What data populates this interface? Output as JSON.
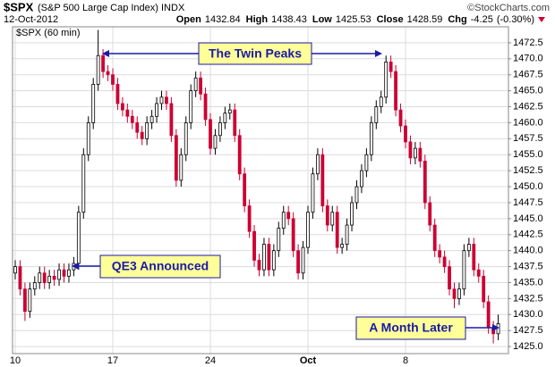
{
  "chart_data": {
    "type": "candlestick",
    "title": "$SPX",
    "subtitle": "(S&P 500 Large Cap Index) INDX",
    "source": "©StockCharts.com",
    "date": "12-Oct-2012",
    "quote": [
      {
        "label": "Open",
        "value": 1432.84
      },
      {
        "label": "High",
        "value": 1438.43
      },
      {
        "label": "Low",
        "value": 1425.53
      },
      {
        "label": "Close",
        "value": 1428.59
      },
      {
        "label": "Chg",
        "value": -4.25
      }
    ],
    "change_pct": "(-0.30%)",
    "chart_label": "$SPX (60 min)",
    "annotations": [
      "The Twin Peaks",
      "QE3 Announced",
      "A Month Later"
    ],
    "up_color": "#000000",
    "down_color": "#cc0033",
    "grid": true,
    "ylim": [
      1423.9,
      1475.0
    ],
    "yticks": [
      {
        "value": 1425,
        "label": "1425.0"
      },
      {
        "value": 1427.5,
        "label": "1427.5"
      },
      {
        "value": 1430,
        "label": "1430.0"
      },
      {
        "value": 1432.5,
        "label": "1432.5"
      },
      {
        "value": 1435,
        "label": "1435.0"
      },
      {
        "value": 1437.5,
        "label": "1437.5"
      },
      {
        "value": 1440,
        "label": "1440.0"
      },
      {
        "value": 1442.5,
        "label": "1442.5"
      },
      {
        "value": 1445,
        "label": "1445.0"
      },
      {
        "value": 1447.5,
        "label": "1447.5"
      },
      {
        "value": 1450,
        "label": "1450.0"
      },
      {
        "value": 1452.5,
        "label": "1452.5"
      },
      {
        "value": 1455,
        "label": "1455.0"
      },
      {
        "value": 1457.5,
        "label": "1457.5"
      },
      {
        "value": 1460,
        "label": "1460.0"
      },
      {
        "value": 1462.5,
        "label": "1462.5"
      },
      {
        "value": 1465,
        "label": "1465.0"
      },
      {
        "value": 1467.5,
        "label": "1467.5"
      },
      {
        "value": 1470,
        "label": "1470.0"
      },
      {
        "value": 1472.5,
        "label": "1472.5"
      }
    ],
    "categories": [
      "10",
      null,
      null,
      null,
      null,
      null,
      null,
      null,
      null,
      null,
      null,
      null,
      null,
      null,
      null,
      null,
      null,
      null,
      null,
      null,
      "17",
      null,
      null,
      null,
      null,
      null,
      null,
      null,
      null,
      null,
      null,
      null,
      null,
      null,
      null,
      null,
      null,
      null,
      null,
      null,
      "24",
      null,
      null,
      null,
      null,
      null,
      null,
      null,
      null,
      null,
      null,
      null,
      null,
      null,
      null,
      null,
      null,
      null,
      null,
      null,
      "Oct",
      null,
      null,
      null,
      null,
      null,
      null,
      null,
      null,
      null,
      null,
      null,
      null,
      null,
      null,
      null,
      null,
      null,
      null,
      null,
      "8",
      null,
      null,
      null,
      null,
      null,
      null,
      null,
      null,
      null,
      null,
      null,
      null,
      null,
      null,
      null,
      null,
      null,
      null,
      null
    ],
    "open": [
      1436.5,
      1437.5,
      1434.0,
      1430.5,
      1434.0,
      1435.0,
      1436.5,
      1435.0,
      1436.0,
      1435.5,
      1437.0,
      1436.0,
      1437.0,
      1438.0,
      1446.0,
      1455.0,
      1460.0,
      1466.0,
      1470.5,
      1468.0,
      1467.5,
      1466.0,
      1463.0,
      1462.0,
      1461.0,
      1460.0,
      1458.5,
      1457.5,
      1460.0,
      1461.0,
      1463.0,
      1464.0,
      1463.0,
      1458.0,
      1451.0,
      1455.0,
      1460.0,
      1465.0,
      1467.0,
      1464.5,
      1460.5,
      1456.0,
      1458.0,
      1460.0,
      1461.5,
      1462.0,
      1458.0,
      1452.0,
      1447.0,
      1443.0,
      1438.5,
      1437.0,
      1441.0,
      1437.0,
      1440.0,
      1443.5,
      1446.0,
      1445.0,
      1440.0,
      1436.5,
      1440.5,
      1446.0,
      1452.0,
      1455.0,
      1447.0,
      1444.0,
      1446.0,
      1440.5,
      1441.0,
      1444.0,
      1447.5,
      1450.0,
      1452.5,
      1455.0,
      1460.0,
      1462.5,
      1464.0,
      1469.5,
      1468.0,
      1462.0,
      1459.5,
      1457.0,
      1454.5,
      1456.0,
      1454.0,
      1447.5,
      1444.0,
      1440.0,
      1439.0,
      1437.5,
      1434.0,
      1432.5,
      1434.0,
      1440.0,
      1441.0,
      1437.0,
      1436.0,
      1432.0,
      1428.0,
      1427.0
    ],
    "high": [
      1438.5,
      1438.5,
      1435,
      1435,
      1436,
      1437.5,
      1437.5,
      1437,
      1437,
      1438,
      1438,
      1438,
      1439,
      1447,
      1456,
      1461,
      1467,
      1474.5,
      1471.5,
      1469,
      1468.5,
      1467,
      1464,
      1463,
      1462,
      1461,
      1459.5,
      1461,
      1462,
      1464,
      1465,
      1465,
      1464,
      1459,
      1456,
      1461,
      1466,
      1468,
      1468,
      1465.5,
      1461.5,
      1459,
      1461,
      1462.5,
      1463,
      1463,
      1459,
      1453,
      1448,
      1444,
      1439.5,
      1442,
      1442,
      1441,
      1444.5,
      1447,
      1447,
      1446,
      1441,
      1441.5,
      1447,
      1453,
      1456,
      1456,
      1448,
      1447,
      1447,
      1442,
      1445,
      1448.5,
      1451,
      1453.5,
      1456,
      1461,
      1463.5,
      1465,
      1470.5,
      1470.5,
      1469,
      1463,
      1460.5,
      1458,
      1457,
      1457,
      1455,
      1448.5,
      1445,
      1441,
      1440,
      1438.5,
      1435,
      1435,
      1441,
      1442,
      1442,
      1438,
      1437,
      1433,
      1429,
      1430
    ],
    "low": [
      1435.5,
      1433,
      1429,
      1429.5,
      1433,
      1434,
      1434,
      1434,
      1434.5,
      1434.5,
      1435,
      1435,
      1436,
      1437,
      1445,
      1454,
      1459,
      1465,
      1467,
      1466.5,
      1465,
      1462,
      1461,
      1460,
      1459,
      1457.5,
      1456.5,
      1456.5,
      1459,
      1460,
      1462,
      1462,
      1457,
      1450,
      1450,
      1454,
      1459,
      1464,
      1463.5,
      1459.5,
      1455,
      1455,
      1457,
      1459,
      1460.5,
      1457,
      1451,
      1446,
      1442,
      1437.5,
      1436,
      1436,
      1436,
      1436,
      1439,
      1442.5,
      1444,
      1439,
      1435.5,
      1435.5,
      1439.5,
      1445,
      1451,
      1446,
      1443,
      1443,
      1439.5,
      1439.5,
      1440,
      1443,
      1446.5,
      1449,
      1451.5,
      1454,
      1459,
      1461.5,
      1463,
      1467,
      1461,
      1458.5,
      1456,
      1453.5,
      1453.5,
      1453,
      1446.5,
      1443,
      1439,
      1438,
      1436.5,
      1433,
      1431,
      1431.5,
      1433,
      1439,
      1436,
      1435,
      1431,
      1427,
      1425.5,
      1426
    ],
    "close": [
      1437.5,
      1434.0,
      1430.5,
      1434.0,
      1435.0,
      1436.5,
      1435.0,
      1436.0,
      1435.5,
      1437.0,
      1436.0,
      1437.0,
      1438.0,
      1446.0,
      1455.0,
      1460.0,
      1466.0,
      1470.5,
      1468.0,
      1467.5,
      1466.0,
      1463.0,
      1462.0,
      1461.0,
      1460.0,
      1458.5,
      1457.5,
      1460.0,
      1461.0,
      1463.0,
      1464.0,
      1463.0,
      1458.0,
      1451.0,
      1455.0,
      1460.0,
      1465.0,
      1467.0,
      1464.5,
      1460.5,
      1456.0,
      1458.0,
      1460.0,
      1461.5,
      1462.0,
      1458.0,
      1452.0,
      1447.0,
      1443.0,
      1438.5,
      1437.0,
      1441.0,
      1437.0,
      1440.0,
      1443.5,
      1446.0,
      1445.0,
      1440.0,
      1436.5,
      1440.5,
      1446.0,
      1452.0,
      1455.0,
      1447.0,
      1444.0,
      1446.0,
      1440.5,
      1441.0,
      1444.0,
      1447.5,
      1450.0,
      1452.5,
      1455.0,
      1460.0,
      1462.5,
      1464.0,
      1469.5,
      1468.0,
      1462.0,
      1459.5,
      1457.0,
      1454.5,
      1456.0,
      1454.0,
      1447.5,
      1444.0,
      1440.0,
      1439.0,
      1437.5,
      1434.0,
      1432.5,
      1434.0,
      1440.0,
      1441.0,
      1437.0,
      1436.0,
      1432.0,
      1428.0,
      1427.0,
      1428.59
    ]
  }
}
